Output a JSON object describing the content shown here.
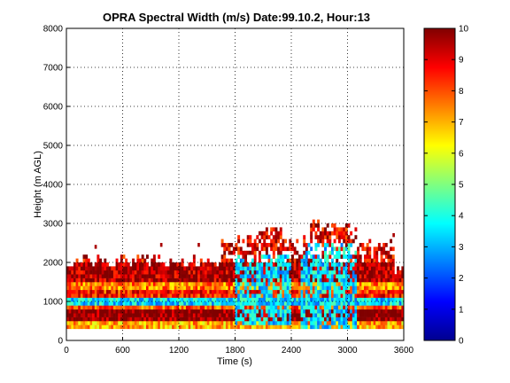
{
  "chart_data": {
    "type": "heatmap",
    "title": "OPRA Spectral Width (m/s)  Date:99.10.2, Hour:13",
    "xlabel": "Time (s)",
    "ylabel": "Height (m AGL)",
    "xlim": [
      0,
      3600
    ],
    "ylim": [
      0,
      8000
    ],
    "xticks": [
      0,
      600,
      1200,
      1800,
      2400,
      3000,
      3600
    ],
    "yticks": [
      0,
      1000,
      2000,
      3000,
      4000,
      5000,
      6000,
      7000,
      8000
    ],
    "grid": true,
    "colormap": "jet",
    "colorbar": {
      "range": [
        0,
        10
      ],
      "ticks": [
        0,
        1,
        2,
        3,
        4,
        5,
        6,
        7,
        8,
        9,
        10
      ],
      "placement": "right"
    },
    "bins": {
      "time_step_s": 25,
      "height_step_m": 100
    },
    "band_layers": [
      {
        "height_range_m": [
          300,
          500
        ],
        "spectral_width_ms": 7
      },
      {
        "height_range_m": [
          500,
          800
        ],
        "spectral_width_ms": 10
      },
      {
        "height_range_m": [
          800,
          900
        ],
        "spectral_width_ms": 8
      },
      {
        "height_range_m": [
          900,
          1100
        ],
        "spectral_width_ms": 3.5
      },
      {
        "height_range_m": [
          1100,
          1300
        ],
        "spectral_width_ms": 8.5
      },
      {
        "height_range_m": [
          1300,
          1500
        ],
        "spectral_width_ms": 7.5
      },
      {
        "height_range_m": [
          1500,
          1800
        ],
        "spectral_width_ms": 9.5
      },
      {
        "height_range_m": [
          1800,
          2000
        ],
        "spectral_width_ms": 9.5
      }
    ],
    "low_width_regions": [
      {
        "time_range_s": [
          1800,
          2400
        ],
        "height_range_m": [
          400,
          2200
        ],
        "spectral_width_ms": 3.5
      },
      {
        "time_range_s": [
          2500,
          3100
        ],
        "height_range_m": [
          300,
          2500
        ],
        "spectral_width_ms": 3.5
      }
    ],
    "echo_top_m": [
      {
        "time_range_s": [
          0,
          1650
        ],
        "top_m": 2000
      },
      {
        "time_range_s": [
          1650,
          2000
        ],
        "top_m": 2500
      },
      {
        "time_range_s": [
          2000,
          2300
        ],
        "top_m": 2800
      },
      {
        "time_range_s": [
          2300,
          2600
        ],
        "top_m": 2500
      },
      {
        "time_range_s": [
          2600,
          3100
        ],
        "top_m": 2950
      },
      {
        "time_range_s": [
          3100,
          3500
        ],
        "top_m": 2400
      },
      {
        "time_range_s": [
          3500,
          3600
        ],
        "top_m": 1800
      }
    ]
  }
}
